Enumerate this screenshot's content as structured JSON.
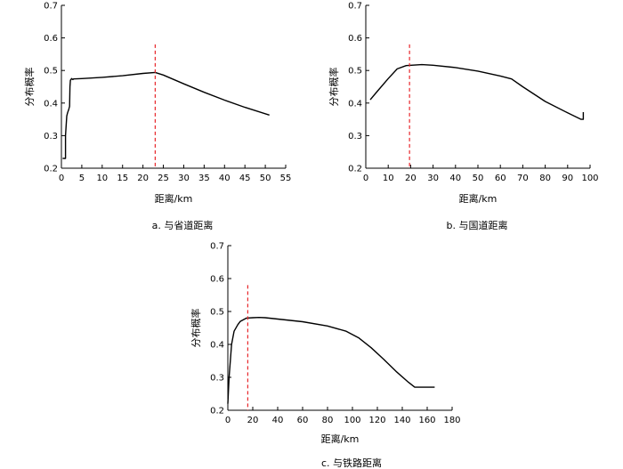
{
  "chart_data": [
    {
      "type": "line",
      "caption": "a. 与省道距离",
      "xlabel": "距离/km",
      "ylabel": "分布概率",
      "xlim": [
        0,
        55
      ],
      "ylim": [
        0.2,
        0.7
      ],
      "xticks": [
        0,
        5,
        10,
        15,
        20,
        25,
        30,
        35,
        40,
        45,
        50,
        55
      ],
      "yticks": [
        0.2,
        0.3,
        0.4,
        0.5,
        0.6,
        0.7
      ],
      "series": [
        {
          "color": "#000000",
          "x": [
            0.3,
            1.0,
            1.0,
            1.3,
            1.5,
            1.8,
            2.0,
            2.1,
            2.2,
            2.5,
            2.8,
            3.0,
            5,
            10,
            15,
            20,
            23,
            25,
            30,
            35,
            40,
            45,
            51
          ],
          "y": [
            0.23,
            0.23,
            0.3,
            0.36,
            0.37,
            0.38,
            0.39,
            0.45,
            0.47,
            0.475,
            0.472,
            0.474,
            0.475,
            0.479,
            0.484,
            0.491,
            0.494,
            0.486,
            0.459,
            0.433,
            0.409,
            0.387,
            0.363
          ]
        }
      ],
      "vline": {
        "x": 23,
        "color": "#e8262a"
      }
    },
    {
      "type": "line",
      "caption": "b. 与国道距离",
      "xlabel": "距离/km",
      "ylabel": "分布概率",
      "xlim": [
        0,
        100
      ],
      "ylim": [
        0.2,
        0.7
      ],
      "xticks": [
        0,
        10,
        20,
        30,
        40,
        50,
        60,
        70,
        80,
        90,
        100
      ],
      "yticks": [
        0.2,
        0.3,
        0.4,
        0.5,
        0.6,
        0.7
      ],
      "series": [
        {
          "color": "#000000",
          "x": [
            2,
            5,
            10,
            14,
            18,
            25,
            30,
            40,
            50,
            60,
            65,
            70,
            80,
            90,
            96,
            97,
            97
          ],
          "y": [
            0.41,
            0.435,
            0.475,
            0.505,
            0.515,
            0.518,
            0.516,
            0.509,
            0.498,
            0.483,
            0.474,
            0.45,
            0.405,
            0.37,
            0.35,
            0.35,
            0.372
          ]
        }
      ],
      "vline": {
        "x": 19.5,
        "color": "#e8262a"
      }
    },
    {
      "type": "line",
      "caption": "c. 与铁路距离",
      "xlabel": "距离/km",
      "ylabel": "分布概率",
      "xlim": [
        0,
        180
      ],
      "ylim": [
        0.2,
        0.7
      ],
      "xticks": [
        0,
        20,
        40,
        60,
        80,
        100,
        120,
        140,
        160,
        180
      ],
      "yticks": [
        0.2,
        0.3,
        0.4,
        0.5,
        0.6,
        0.7
      ],
      "series": [
        {
          "color": "#000000",
          "x": [
            0,
            1,
            3,
            5,
            8,
            10,
            15,
            20,
            25,
            30,
            40,
            60,
            80,
            95,
            105,
            115,
            125,
            135,
            145,
            150,
            160,
            166
          ],
          "y": [
            0.22,
            0.3,
            0.4,
            0.44,
            0.46,
            0.47,
            0.48,
            0.481,
            0.482,
            0.481,
            0.477,
            0.469,
            0.456,
            0.44,
            0.42,
            0.39,
            0.355,
            0.318,
            0.285,
            0.27,
            0.27,
            0.27
          ]
        }
      ],
      "vline": {
        "x": 16,
        "color": "#e8262a"
      }
    }
  ]
}
